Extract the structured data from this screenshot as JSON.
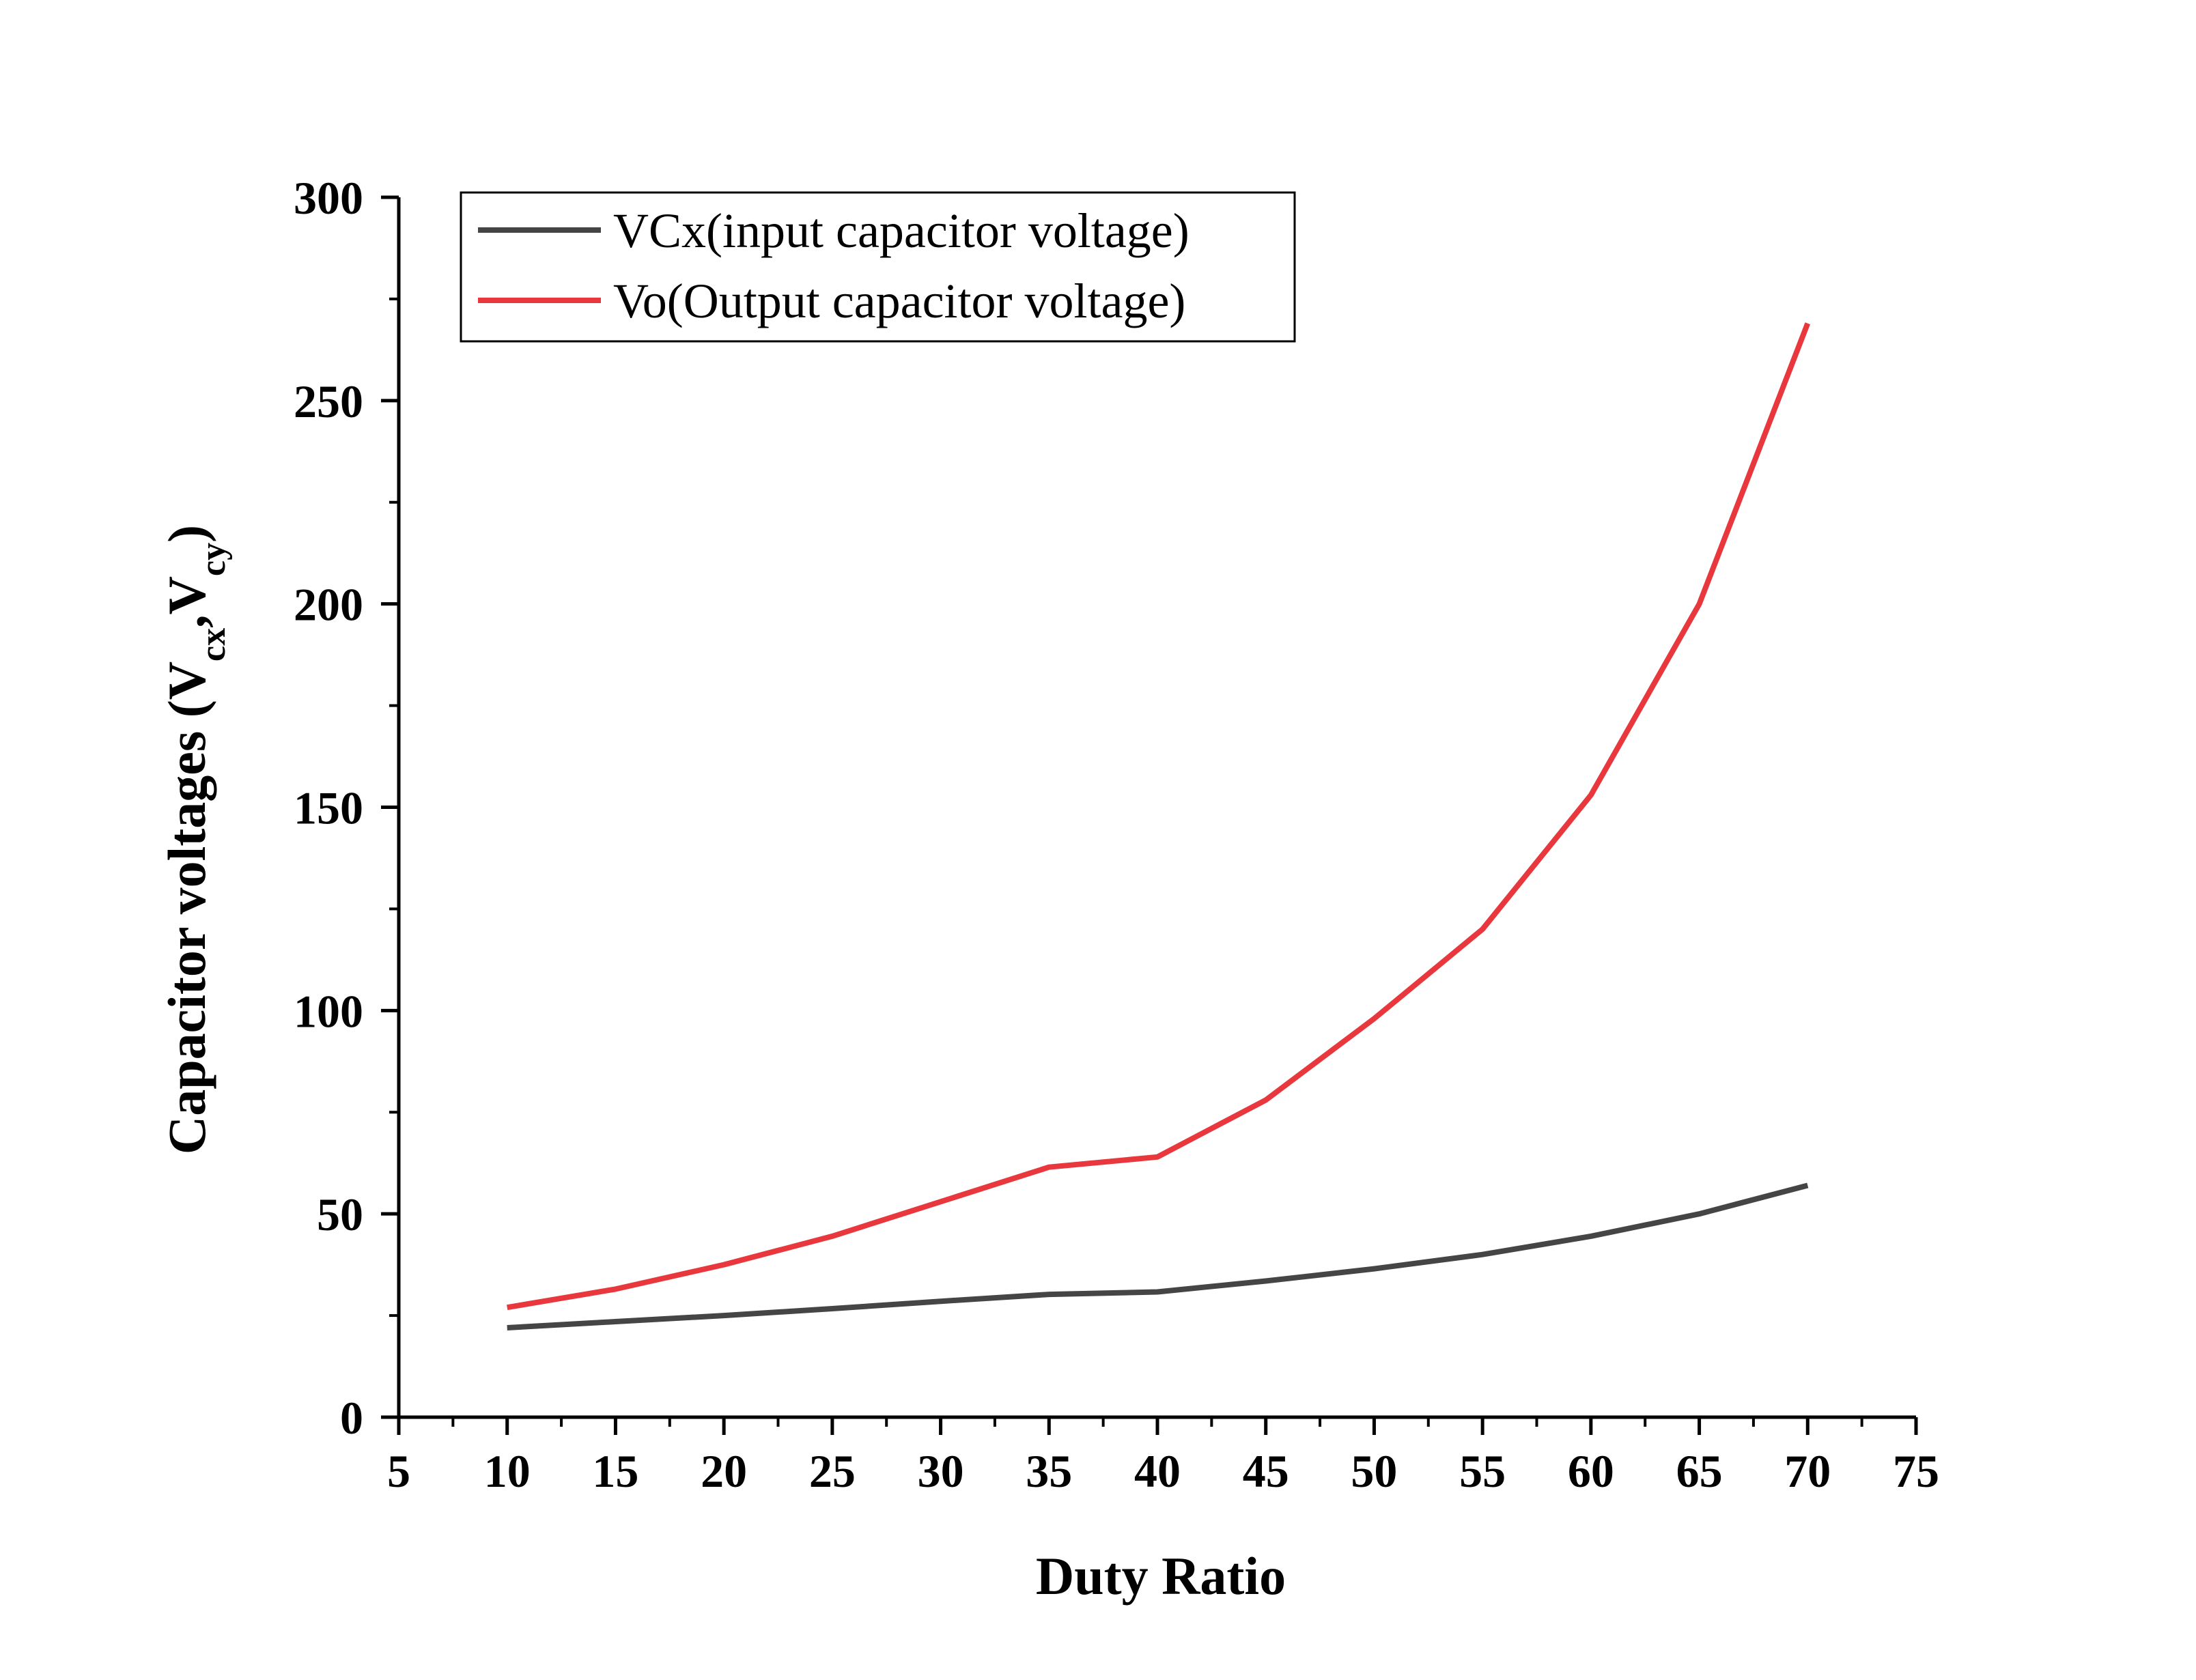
{
  "chart_data": {
    "type": "line",
    "title": "",
    "xlabel": "Duty Ratio",
    "ylabel": {
      "prefix": "Capacitor voltages (V",
      "sub1": "cx",
      "mid": ",V",
      "sub2": "cy",
      "suffix": ")"
    },
    "xlim": [
      5,
      75
    ],
    "ylim": [
      0,
      300
    ],
    "x_ticks": [
      5,
      10,
      15,
      20,
      25,
      30,
      35,
      40,
      45,
      50,
      55,
      60,
      65,
      70,
      75
    ],
    "y_ticks": [
      0,
      50,
      100,
      150,
      200,
      250,
      300
    ],
    "x_minor_step": 2.5,
    "y_minor_step": 25,
    "grid": false,
    "legend_position": "top-left",
    "x": [
      10,
      15,
      20,
      25,
      30,
      35,
      40,
      45,
      50,
      55,
      60,
      65,
      70
    ],
    "series": [
      {
        "name": "VCx(input capacitor voltage)",
        "color": "#454545",
        "values": [
          22,
          23.5,
          25,
          26.7,
          28.5,
          30.2,
          30.8,
          33.5,
          36.5,
          40,
          44.5,
          50,
          57
        ]
      },
      {
        "name": "Vo(Output capacitor voltage)",
        "color": "#e8383d",
        "values": [
          27,
          31.5,
          37.5,
          44.5,
          53,
          61.5,
          64,
          78,
          98,
          120,
          153,
          200,
          269
        ]
      }
    ]
  }
}
